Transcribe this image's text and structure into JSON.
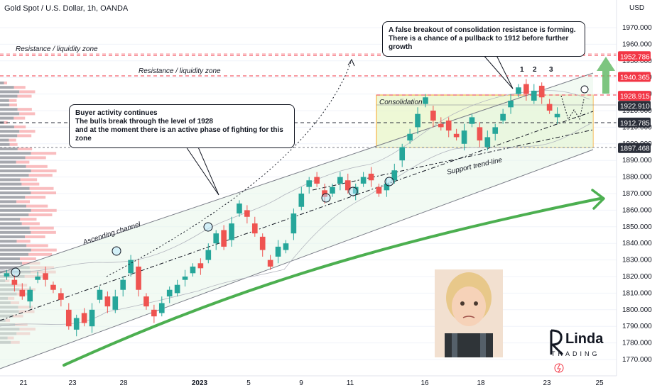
{
  "header": {
    "symbol_title": "Gold Spot / U.S. Dollar, 1h, OANDA",
    "currency": "USD"
  },
  "annotations": {
    "buyer_note": [
      "Buyer activity continues",
      "The bulls break through the level of 1928",
      "and at the moment there is an active phase of fighting for this zone"
    ],
    "false_breakout_note": [
      "A false breakout of consolidation resistance is forming.",
      "There is a chance of a pullback to 1912 before further growth"
    ],
    "resistance_zone_1": "Resistance / liquidity zone",
    "resistance_zone_2": "Resistance / liquidity zone",
    "consolidation": "Consolidation",
    "ascending_channel": "Ascending channel",
    "support_trendline": "Support trend-line",
    "wave_labels": [
      "1",
      "2",
      "3"
    ]
  },
  "logo": {
    "line1": "Linda",
    "line2": "TRADING"
  },
  "colors": {
    "bull": "#26a69a",
    "bear": "#ef5350",
    "resistance_line": "#f23645",
    "price_label": "#2a2e39",
    "green_arrow": "#4caf50",
    "consolidation_fill": "#e8f5c8",
    "consolidation_border": "#f5a623"
  },
  "chart_data": {
    "type": "candlestick",
    "title": "Gold Spot / U.S. Dollar, 1h, OANDA",
    "y_unit": "USD",
    "ylim": [
      1765,
      1980
    ],
    "y_ticks": [
      1770,
      1780,
      1790,
      1800,
      1810,
      1820,
      1830,
      1840,
      1850,
      1860,
      1870,
      1880,
      1890,
      1900,
      1910,
      1920,
      1930,
      1940,
      1950,
      1960,
      1970
    ],
    "x_ticks": [
      "21",
      "23",
      "28",
      "2023",
      "5",
      "9",
      "11",
      "16",
      "18",
      "23",
      "25"
    ],
    "price_levels": [
      {
        "value": 1952.786,
        "label": "1952.786",
        "style": "red"
      },
      {
        "value": 1940.365,
        "label": "1940.365",
        "style": "red"
      },
      {
        "value": 1928.915,
        "label": "1928.915",
        "style": "red"
      },
      {
        "value": 1922.91,
        "label": "1922.910",
        "style": "dark"
      },
      {
        "value": 1912.785,
        "label": "1912.785",
        "style": "dark"
      },
      {
        "value": 1897.468,
        "label": "1897.468",
        "style": "dark"
      }
    ],
    "price_path": [
      [
        1820,
        1822
      ],
      [
        1818,
        1815
      ],
      [
        1812,
        1808
      ],
      [
        1805,
        1812
      ],
      [
        1818,
        1820
      ],
      [
        1822,
        1818
      ],
      [
        1815,
        1812
      ],
      [
        1810,
        1806
      ],
      [
        1800,
        1790
      ],
      [
        1788,
        1795
      ],
      [
        1798,
        1792
      ],
      [
        1790,
        1800
      ],
      [
        1806,
        1812
      ],
      [
        1808,
        1802
      ],
      [
        1800,
        1808
      ],
      [
        1812,
        1818
      ],
      [
        1822,
        1830
      ],
      [
        1826,
        1812
      ],
      [
        1808,
        1802
      ],
      [
        1800,
        1796
      ],
      [
        1798,
        1804
      ],
      [
        1808,
        1812
      ],
      [
        1810,
        1815
      ],
      [
        1818,
        1820
      ],
      [
        1822,
        1826
      ],
      [
        1828,
        1825
      ],
      [
        1830,
        1836
      ],
      [
        1840,
        1846
      ],
      [
        1848,
        1838
      ],
      [
        1842,
        1852
      ],
      [
        1858,
        1864
      ],
      [
        1860,
        1856
      ],
      [
        1852,
        1846
      ],
      [
        1844,
        1836
      ],
      [
        1830,
        1826
      ],
      [
        1832,
        1838
      ],
      [
        1836,
        1840
      ],
      [
        1846,
        1858
      ],
      [
        1862,
        1870
      ],
      [
        1874,
        1878
      ],
      [
        1880,
        1876
      ],
      [
        1872,
        1868
      ],
      [
        1870,
        1874
      ],
      [
        1876,
        1880
      ],
      [
        1878,
        1872
      ],
      [
        1870,
        1874
      ],
      [
        1876,
        1880
      ],
      [
        1882,
        1878
      ],
      [
        1874,
        1870
      ],
      [
        1872,
        1876
      ],
      [
        1878,
        1884
      ],
      [
        1890,
        1898
      ],
      [
        1902,
        1906
      ],
      [
        1910,
        1918
      ],
      [
        1924,
        1928
      ],
      [
        1920,
        1914
      ],
      [
        1912,
        1910
      ],
      [
        1914,
        1908
      ],
      [
        1906,
        1904
      ],
      [
        1900,
        1908
      ],
      [
        1912,
        1916
      ],
      [
        1910,
        1902
      ],
      [
        1898,
        1904
      ],
      [
        1906,
        1910
      ],
      [
        1914,
        1918
      ],
      [
        1922,
        1926
      ],
      [
        1930,
        1934
      ],
      [
        1936,
        1930
      ],
      [
        1926,
        1932
      ],
      [
        1935,
        1928
      ],
      [
        1924,
        1920
      ],
      [
        1916,
        1918
      ]
    ],
    "channel": {
      "upper_start": 1822,
      "upper_end": 1941,
      "lower_start": 1772,
      "lower_end": 1893,
      "name": "Ascending channel"
    },
    "consolidation_zone": {
      "top": 1929,
      "bottom": 1897.5,
      "name": "Consolidation"
    }
  }
}
